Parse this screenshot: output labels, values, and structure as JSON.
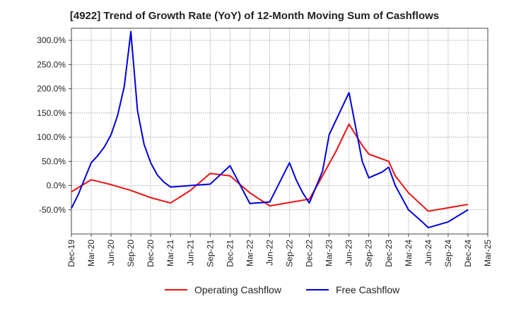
{
  "chart_data": {
    "type": "line",
    "title": "[4922]  Trend of Growth Rate (YoY) of 12-Month Moving Sum of Cashflows",
    "xlabel": "",
    "ylabel": "",
    "ylim": [
      -100,
      325
    ],
    "y_ticks": [
      -50,
      0,
      50,
      100,
      150,
      200,
      250,
      300
    ],
    "y_tick_labels": [
      "-50.0%",
      "0.0%",
      "50.0%",
      "100.0%",
      "150.0%",
      "200.0%",
      "250.0%",
      "300.0%"
    ],
    "x_ticks": [
      "Dec-19",
      "Mar-20",
      "Jun-20",
      "Sep-20",
      "Dec-20",
      "Mar-21",
      "Jun-21",
      "Sep-21",
      "Dec-21",
      "Mar-22",
      "Jun-22",
      "Sep-22",
      "Dec-22",
      "Mar-23",
      "Jun-23",
      "Sep-23",
      "Dec-23",
      "Mar-24",
      "Jun-24",
      "Sep-24",
      "Dec-24",
      "Mar-25"
    ],
    "grid": true,
    "legend_position": "bottom-center",
    "series": [
      {
        "name": "Operating Cashflow",
        "color": "#ee1111",
        "points": [
          [
            "Dec-19",
            -13
          ],
          [
            "Mar-20",
            12
          ],
          [
            "Jun-20",
            2
          ],
          [
            "Sep-20",
            -10
          ],
          [
            "Dec-20",
            -25
          ],
          [
            "Mar-21",
            -36
          ],
          [
            "Jun-21",
            -10
          ],
          [
            "Sep-21",
            25
          ],
          [
            "Dec-21",
            20
          ],
          [
            "Mar-22",
            -15
          ],
          [
            "Jun-22",
            -42
          ],
          [
            "Sep-22",
            -35
          ],
          [
            "Dec-22",
            -28
          ],
          [
            "Feb-23",
            20
          ],
          [
            "Mar-23",
            45
          ],
          [
            "Apr-23",
            70
          ],
          [
            "Jun-23",
            127
          ],
          [
            "Aug-23",
            83
          ],
          [
            "Sep-23",
            65
          ],
          [
            "Dec-23",
            50
          ],
          [
            "Jan-24",
            20
          ],
          [
            "Mar-24",
            -15
          ],
          [
            "Jun-24",
            -53
          ],
          [
            "Dec-24",
            -39
          ]
        ]
      },
      {
        "name": "Free Cashflow",
        "color": "#0000dd",
        "points": [
          [
            "Dec-19",
            -47
          ],
          [
            "Jan-20",
            -20
          ],
          [
            "Mar-20",
            47
          ],
          [
            "Apr-20",
            62
          ],
          [
            "May-20",
            80
          ],
          [
            "Jun-20",
            105
          ],
          [
            "Jul-20",
            145
          ],
          [
            "Aug-20",
            205
          ],
          [
            "Sep-20",
            318
          ],
          [
            "Oct-20",
            155
          ],
          [
            "Nov-20",
            85
          ],
          [
            "Dec-20",
            47
          ],
          [
            "Jan-21",
            22
          ],
          [
            "Feb-21",
            7
          ],
          [
            "Mar-21",
            -3
          ],
          [
            "Jun-21",
            0
          ],
          [
            "Sep-21",
            3
          ],
          [
            "Dec-21",
            41
          ],
          [
            "Mar-22",
            -37
          ],
          [
            "Jun-22",
            -34
          ],
          [
            "Sep-22",
            47
          ],
          [
            "Oct-22",
            12
          ],
          [
            "Nov-22",
            -15
          ],
          [
            "Dec-22",
            -36
          ],
          [
            "Feb-23",
            30
          ],
          [
            "Mar-23",
            105
          ],
          [
            "Jun-23",
            192
          ],
          [
            "Aug-23",
            50
          ],
          [
            "Sep-23",
            16
          ],
          [
            "Nov-23",
            28
          ],
          [
            "Dec-23",
            38
          ],
          [
            "Jan-24",
            0
          ],
          [
            "Mar-24",
            -50
          ],
          [
            "May-24",
            -74
          ],
          [
            "Jun-24",
            -87
          ],
          [
            "Sep-24",
            -75
          ],
          [
            "Dec-24",
            -50
          ]
        ]
      }
    ]
  }
}
